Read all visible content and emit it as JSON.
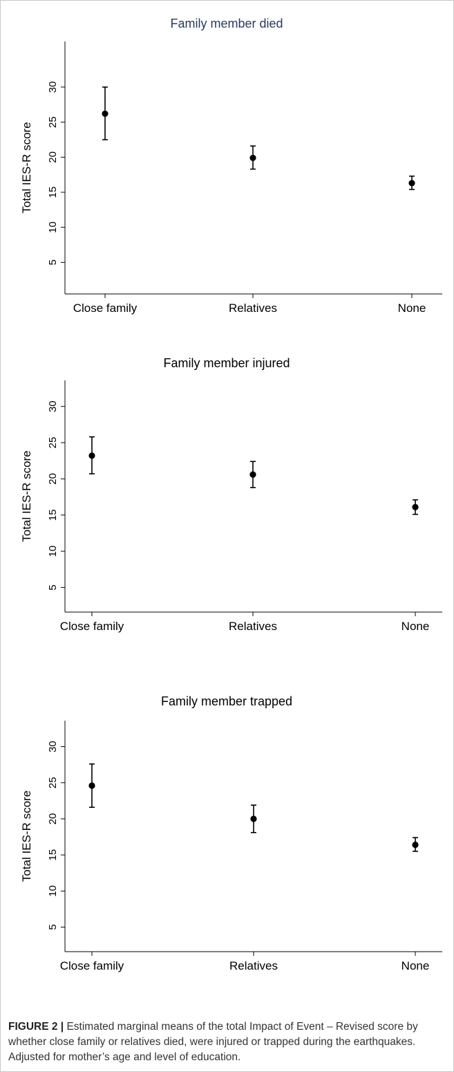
{
  "chart_data": [
    {
      "type": "scatter",
      "title": "Family member died",
      "title_color": "#2a3a5c",
      "ylabel": "Total IES-R score",
      "xlabel": "",
      "categories": [
        "Close family",
        "Relatives",
        "None"
      ],
      "yticks": [
        5,
        10,
        15,
        20,
        25,
        30
      ],
      "ylim": [
        0.5,
        36.5
      ],
      "grid": false,
      "series": [
        {
          "values": [
            26.2,
            19.9,
            16.3
          ],
          "ci_lower": [
            22.5,
            18.3,
            15.4
          ],
          "ci_upper": [
            30.0,
            21.6,
            17.3
          ]
        }
      ]
    },
    {
      "type": "scatter",
      "title": "Family member injured",
      "title_color": "#000000",
      "ylabel": "Total IES-R score",
      "xlabel": "",
      "categories": [
        "Close family",
        "Relatives",
        "None"
      ],
      "yticks": [
        5,
        10,
        15,
        20,
        25,
        30
      ],
      "ylim": [
        1.6,
        33.6
      ],
      "grid": false,
      "series": [
        {
          "values": [
            23.2,
            20.6,
            16.1
          ],
          "ci_lower": [
            20.7,
            18.8,
            15.1
          ],
          "ci_upper": [
            25.8,
            22.4,
            17.1
          ]
        }
      ]
    },
    {
      "type": "scatter",
      "title": "Family member trapped",
      "title_color": "#000000",
      "ylabel": "Total IES-R score",
      "xlabel": "",
      "categories": [
        "Close family",
        "Relatives",
        "None"
      ],
      "yticks": [
        5,
        10,
        15,
        20,
        25,
        30
      ],
      "ylim": [
        1.6,
        33.6
      ],
      "grid": false,
      "series": [
        {
          "values": [
            24.6,
            20.0,
            16.4
          ],
          "ci_lower": [
            21.6,
            18.1,
            15.5
          ],
          "ci_upper": [
            27.6,
            21.9,
            17.4
          ]
        }
      ]
    }
  ],
  "caption": {
    "label": "FIGURE 2 |",
    "text": "Estimated marginal means of the total Impact of Event – Revised score by whether close family or relatives died, were injured or trapped during the earthquakes. Adjusted for mother’s age and level of education."
  }
}
